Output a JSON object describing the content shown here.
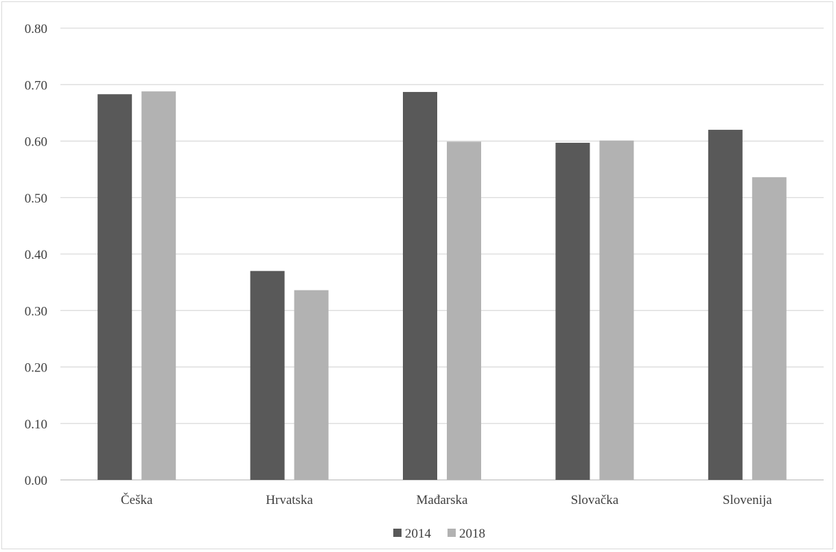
{
  "chart_data": {
    "type": "bar",
    "title": "",
    "xlabel": "",
    "ylabel": "",
    "categories": [
      "Češka",
      "Hrvatska",
      "Mađarska",
      "Slovačka",
      "Slovenija"
    ],
    "series": [
      {
        "name": "2014",
        "color": "#595959",
        "values": [
          0.683,
          0.37,
          0.687,
          0.597,
          0.62
        ]
      },
      {
        "name": "2018",
        "color": "#b2b2b2",
        "values": [
          0.688,
          0.336,
          0.599,
          0.601,
          0.536
        ]
      }
    ],
    "ylim": [
      0,
      0.8
    ],
    "yticks": [
      "0.00",
      "0.10",
      "0.20",
      "0.30",
      "0.40",
      "0.50",
      "0.60",
      "0.70",
      "0.80"
    ],
    "grid": true,
    "legend_position": "bottom"
  }
}
